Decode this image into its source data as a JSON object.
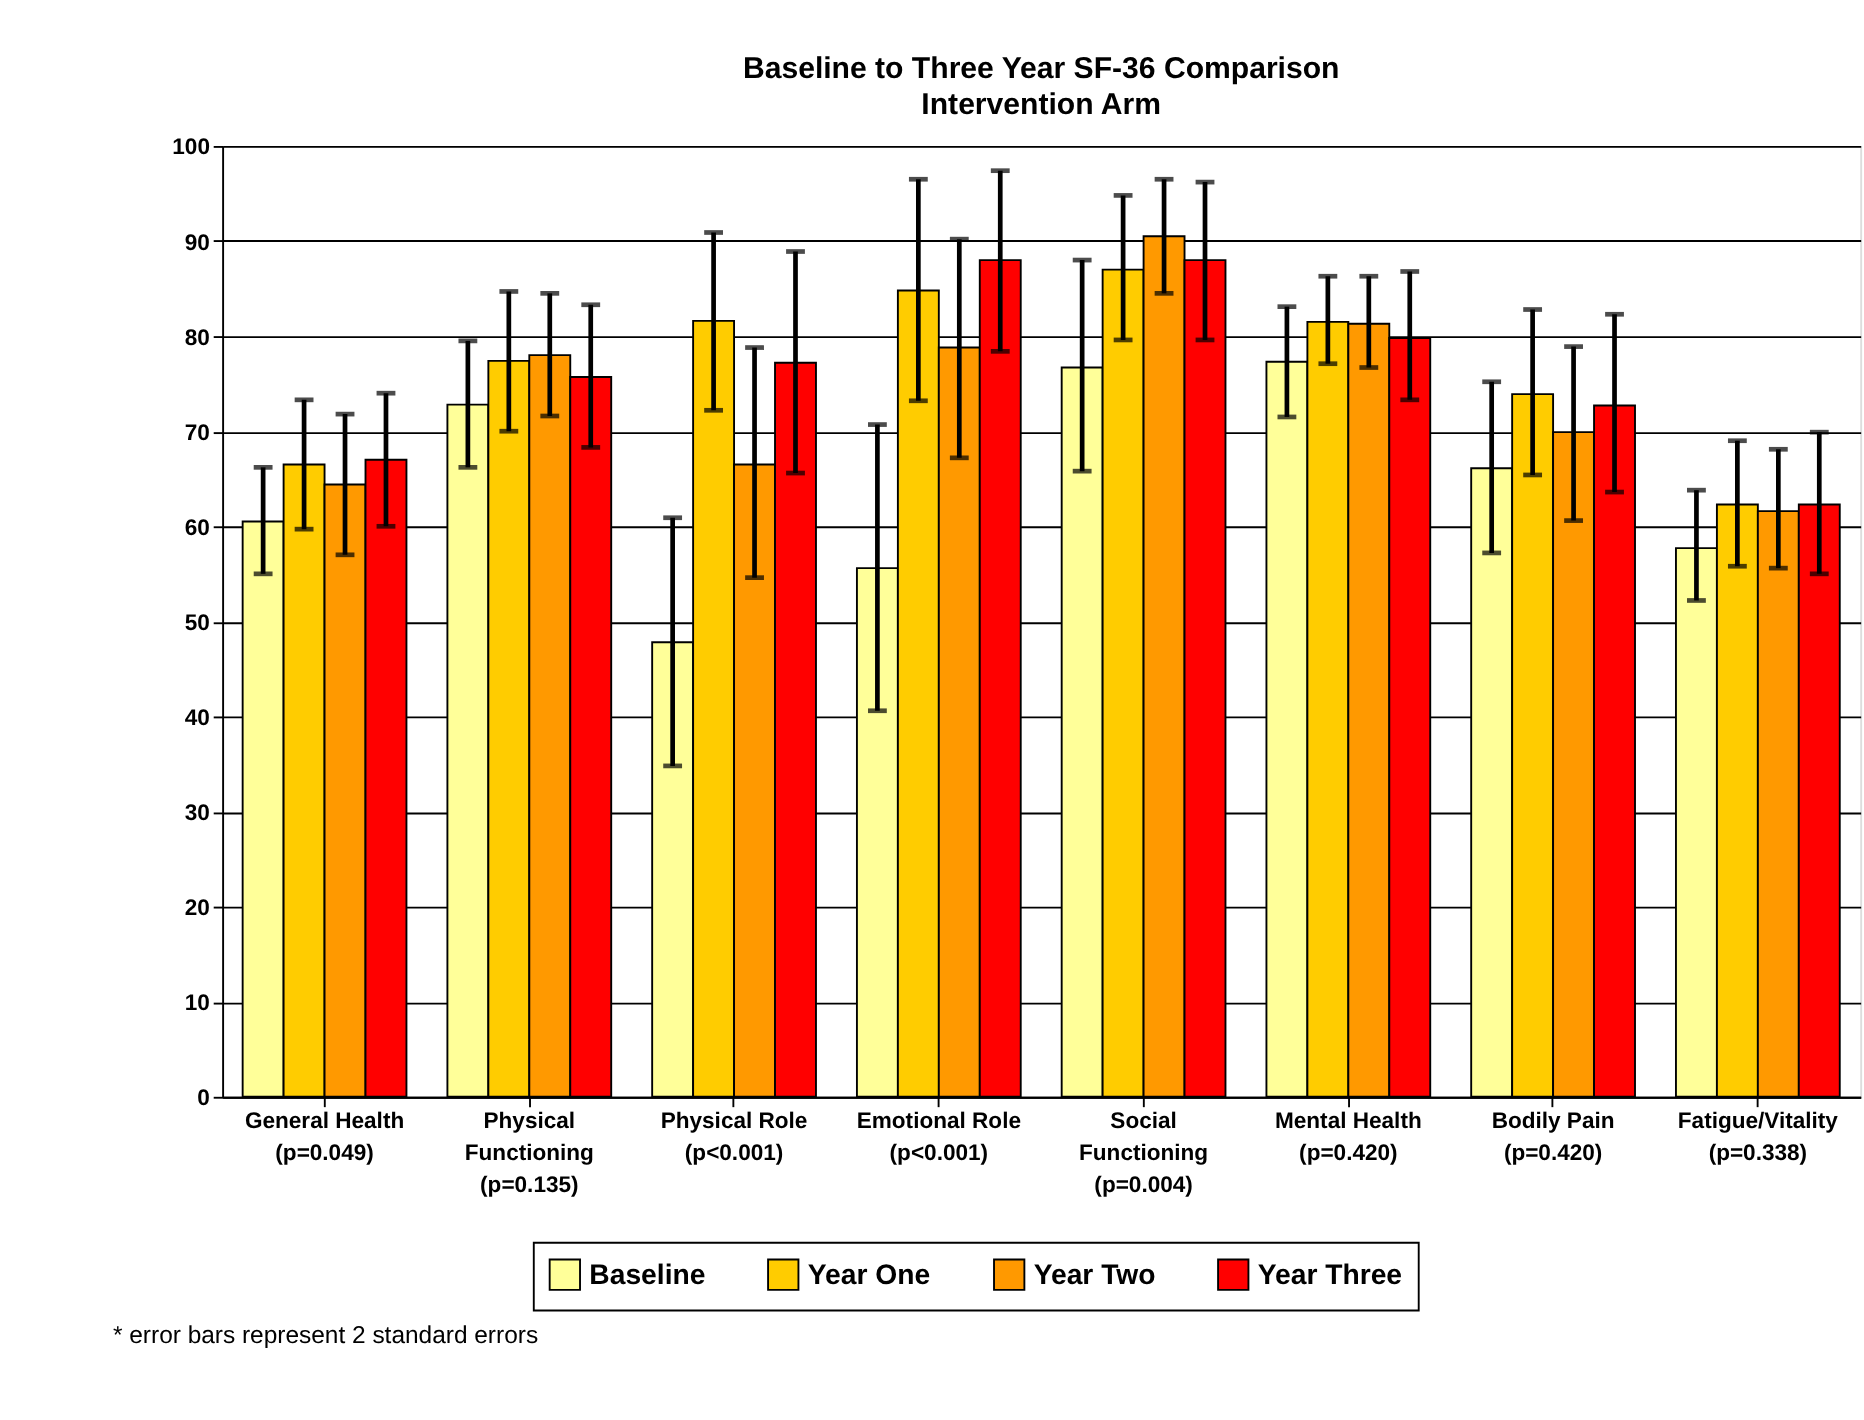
{
  "chart_data": {
    "type": "bar",
    "title": "Baseline to Three Year SF-36 Comparison",
    "subtitle": "Intervention Arm",
    "categories": [
      "General Health\n(p=0.049)",
      "Physical\nFunctioning\n(p=0.135)",
      "Physical Role\n(p<0.001)",
      "Emotional Role\n(p<0.001)",
      "Social\nFunctioning\n(p=0.004)",
      "Mental Health\n(p=0.420)",
      "Bodily Pain\n(p=0.420)",
      "Fatigue/Vitality\n(p=0.338)"
    ],
    "series": [
      {
        "name": "Baseline",
        "color": "#ffff99",
        "values": [
          60.5,
          72.8,
          47.8,
          55.6,
          76.7,
          77.3,
          66.1,
          57.7
        ],
        "errors": [
          [
            55,
            66.2
          ],
          [
            66.2,
            79.5
          ],
          [
            34.8,
            60.9
          ],
          [
            40.6,
            70.7
          ],
          [
            65.8,
            88
          ],
          [
            71.5,
            83.1
          ],
          [
            57.2,
            75.2
          ],
          [
            52.2,
            63.8
          ]
        ]
      },
      {
        "name": "Year One",
        "color": "#ffcc00",
        "values": [
          66.5,
          77.4,
          81.6,
          84.8,
          87,
          81.5,
          73.9,
          62.3
        ],
        "errors": [
          [
            59.7,
            73.3
          ],
          [
            70,
            84.7
          ],
          [
            72.2,
            90.9
          ],
          [
            73.2,
            96.5
          ],
          [
            79.6,
            94.8
          ],
          [
            77.1,
            86.3
          ],
          [
            65.4,
            82.8
          ],
          [
            55.8,
            69
          ]
        ]
      },
      {
        "name": "Year Two",
        "color": "#ff9900",
        "values": [
          64.4,
          78,
          66.5,
          78.8,
          90.5,
          81.3,
          69.9,
          61.6
        ],
        "errors": [
          [
            57,
            71.8
          ],
          [
            71.6,
            84.5
          ],
          [
            54.6,
            78.8
          ],
          [
            67.2,
            90.2
          ],
          [
            84.5,
            96.5
          ],
          [
            76.7,
            86.3
          ],
          [
            60.6,
            78.9
          ],
          [
            55.6,
            68.1
          ]
        ]
      },
      {
        "name": "Year Three",
        "color": "#ff0000",
        "values": [
          67,
          75.7,
          77.2,
          88,
          88,
          79.8,
          72.7,
          62.3
        ],
        "errors": [
          [
            60,
            74
          ],
          [
            68.3,
            83.3
          ],
          [
            65.6,
            88.9
          ],
          [
            78.4,
            97.4
          ],
          [
            79.6,
            96.2
          ],
          [
            73.3,
            86.8
          ],
          [
            63.6,
            82.3
          ],
          [
            55,
            69.9
          ]
        ]
      }
    ],
    "ylim": [
      0,
      100
    ],
    "yticks": [
      0,
      10,
      20,
      30,
      40,
      50,
      60,
      70,
      80,
      90,
      100
    ],
    "grid": "y",
    "legend": "bottom",
    "annotations": [
      "* error bars represent 2 standard errors"
    ]
  }
}
